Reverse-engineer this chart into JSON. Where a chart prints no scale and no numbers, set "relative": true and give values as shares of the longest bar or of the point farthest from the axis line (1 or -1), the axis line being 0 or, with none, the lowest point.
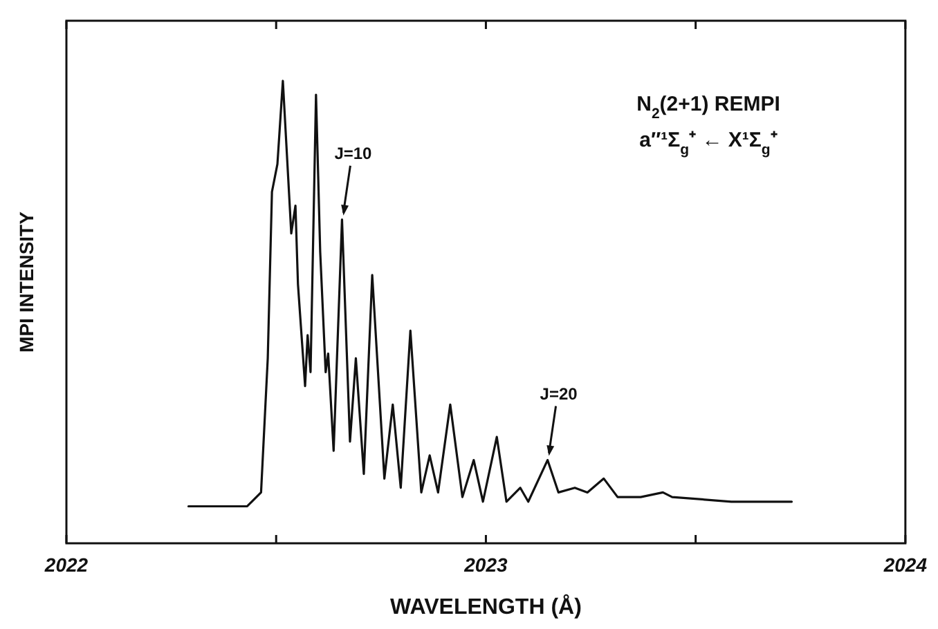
{
  "chart_data": {
    "type": "line",
    "relative": true,
    "xlabel": "WAVELENGTH (Å)",
    "ylabel": "MPI INTENSITY",
    "xlim": [
      2022,
      2024
    ],
    "xticks": [
      2022,
      {
        "value": 2022.5,
        "label": null
      },
      2023,
      {
        "value": 2023.5,
        "label": null
      },
      2024
    ],
    "grid": false,
    "legend": false,
    "marker": "none",
    "line_style": "solid",
    "annotations": [
      "N$_{2}$(2+1) REMPI",
      "a″¹Σ$_{g}$⁺ ← X¹Σ$_{g}$⁺",
      {
        "text": "J=10",
        "x": 2022.657,
        "y": 0.7
      },
      {
        "text": "J=20",
        "x": 2023.147,
        "y": 0.18
      }
    ],
    "series": [
      {
        "color": "#111111",
        "x": [
          2022.291,
          2022.431,
          2022.464,
          2022.48,
          2022.49,
          2022.503,
          2022.516,
          2022.536,
          2022.546,
          2022.552,
          2022.569,
          2022.575,
          2022.582,
          2022.595,
          2022.605,
          2022.618,
          2022.624,
          2022.637,
          2022.657,
          2022.676,
          2022.69,
          2022.709,
          2022.729,
          2022.758,
          2022.778,
          2022.797,
          2022.82,
          2022.846,
          2022.866,
          2022.886,
          2022.915,
          2022.944,
          2022.971,
          2022.993,
          2023.026,
          2023.049,
          2023.082,
          2023.101,
          2023.147,
          2023.173,
          2023.212,
          2023.242,
          2023.281,
          2023.314,
          2023.353,
          2023.369,
          2023.422,
          2023.444,
          2023.585,
          2023.729
        ],
        "values": [
          0.08,
          0.08,
          0.11,
          0.4,
          0.76,
          0.82,
          1.0,
          0.67,
          0.73,
          0.56,
          0.34,
          0.45,
          0.37,
          0.97,
          0.63,
          0.37,
          0.41,
          0.2,
          0.7,
          0.22,
          0.4,
          0.15,
          0.58,
          0.14,
          0.3,
          0.12,
          0.46,
          0.11,
          0.19,
          0.11,
          0.3,
          0.1,
          0.18,
          0.09,
          0.23,
          0.09,
          0.12,
          0.09,
          0.18,
          0.11,
          0.12,
          0.11,
          0.14,
          0.1,
          0.1,
          0.1,
          0.11,
          0.1,
          0.09,
          0.09
        ]
      }
    ]
  }
}
